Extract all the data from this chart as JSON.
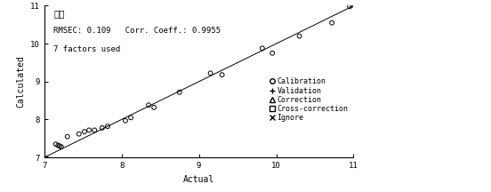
{
  "title": "水分",
  "annotation_line1": "RMSEC: 0.109   Corr. Coeff.: 0.9955",
  "annotation_line2": "7 factors used",
  "xlabel": "Actual",
  "ylabel": "Calculated",
  "xlim": [
    7,
    11
  ],
  "ylim": [
    7,
    11
  ],
  "xticks": [
    7,
    8,
    9,
    10,
    11
  ],
  "yticks": [
    7,
    8,
    9,
    10,
    11
  ],
  "line_x": [
    7,
    11
  ],
  "line_y": [
    7,
    11
  ],
  "calibration_points": [
    [
      7.02,
      6.97
    ],
    [
      7.05,
      6.95
    ],
    [
      7.15,
      7.35
    ],
    [
      7.18,
      7.32
    ],
    [
      7.2,
      7.3
    ],
    [
      7.22,
      7.28
    ],
    [
      7.3,
      7.55
    ],
    [
      7.45,
      7.62
    ],
    [
      7.52,
      7.68
    ],
    [
      7.58,
      7.72
    ],
    [
      7.65,
      7.72
    ],
    [
      7.75,
      7.78
    ],
    [
      7.82,
      7.82
    ],
    [
      8.05,
      7.97
    ],
    [
      8.12,
      8.05
    ],
    [
      8.35,
      8.38
    ],
    [
      8.42,
      8.32
    ],
    [
      8.75,
      8.72
    ],
    [
      9.15,
      9.22
    ],
    [
      9.3,
      9.18
    ],
    [
      9.82,
      9.88
    ],
    [
      9.95,
      9.75
    ],
    [
      10.3,
      10.2
    ],
    [
      10.72,
      10.55
    ],
    [
      10.95,
      10.98
    ],
    [
      10.98,
      11.02
    ]
  ],
  "background_color": "#ffffff",
  "line_color": "#000000",
  "point_color": "#000000",
  "legend_labels": [
    "Calibration",
    "Validation",
    "Correction",
    "Cross-correction",
    "Ignore"
  ],
  "legend_markers": [
    "o",
    "+",
    "^",
    "s",
    "x"
  ],
  "title_fontsize": 7.5,
  "annot_fontsize": 6.5,
  "axis_label_fontsize": 7,
  "tick_fontsize": 6.5,
  "legend_fontsize": 6.0
}
